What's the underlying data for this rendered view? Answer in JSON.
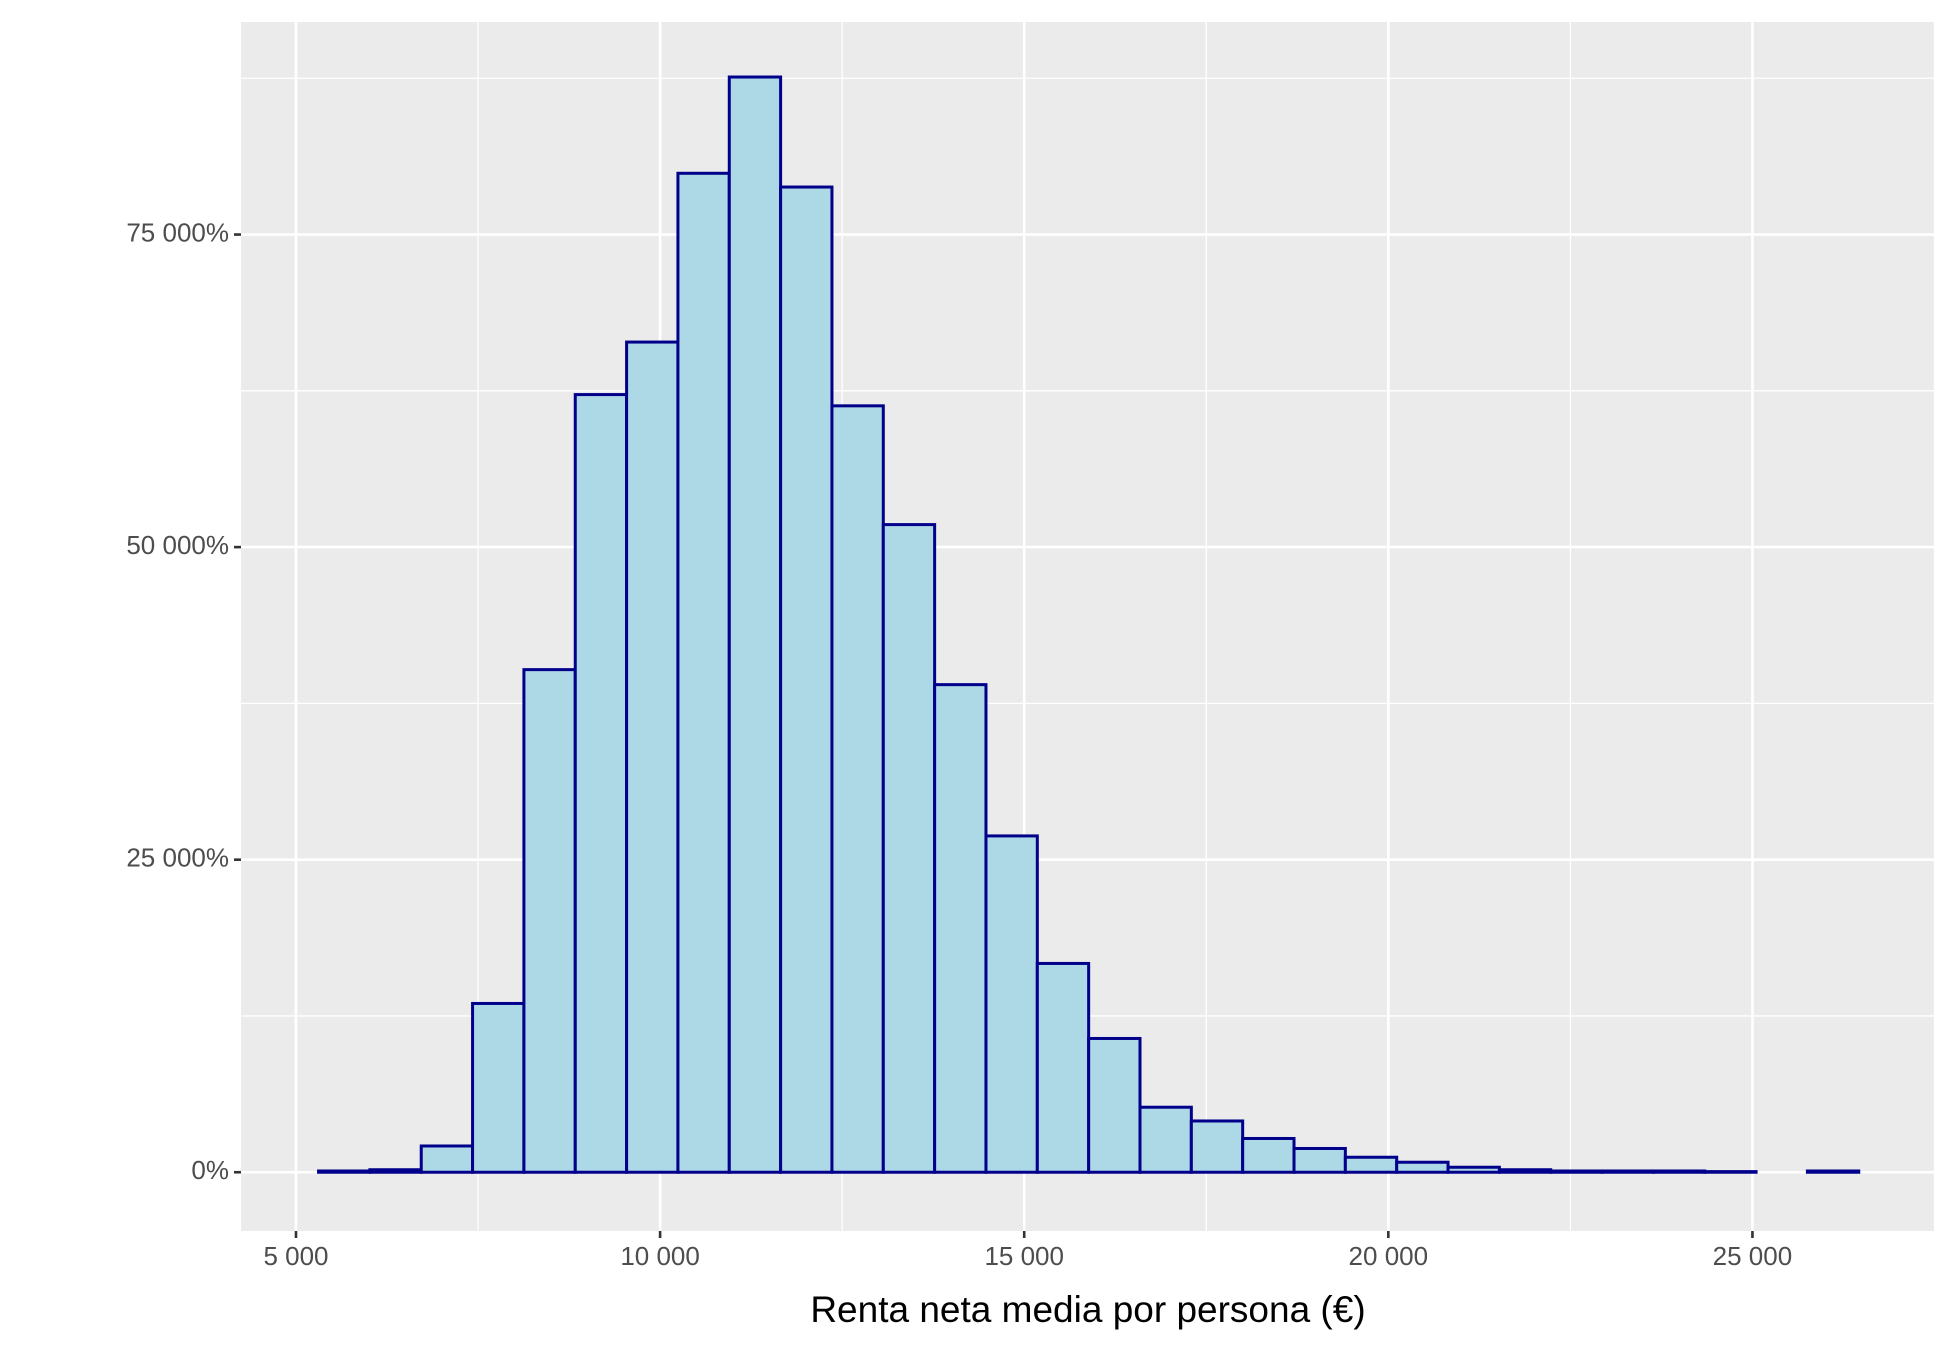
{
  "chart_data": {
    "type": "histogram",
    "x_label": "Renta neta media por persona (€)",
    "bins": [
      5310,
      6015,
      6720,
      7425,
      8130,
      8835,
      9540,
      10245,
      10950,
      11655,
      12360,
      13065,
      13770,
      14475,
      15180,
      15885,
      16590,
      17295,
      18000,
      18705,
      19410,
      20115,
      20820,
      21525,
      22230,
      22935,
      23640,
      24345,
      25050,
      25755,
      26460
    ],
    "values": [
      100,
      200,
      2100,
      13500,
      40200,
      62200,
      66400,
      79900,
      87600,
      78800,
      61300,
      51800,
      39000,
      26900,
      16700,
      10700,
      5200,
      4100,
      2700,
      1900,
      1200,
      800,
      400,
      200,
      100,
      100,
      100,
      50,
      0,
      100
    ],
    "color": "#add8e6",
    "edge_color": "#00008b",
    "xlim": [
      4245,
      27507
    ],
    "ylim": [
      -4700,
      92000
    ],
    "xticks": [
      {
        "value": 5000,
        "label": "5 000"
      },
      {
        "value": 10000,
        "label": "10 000"
      },
      {
        "value": 15000,
        "label": "15 000"
      },
      {
        "value": 20000,
        "label": "20 000"
      },
      {
        "value": 25000,
        "label": "25 000"
      }
    ],
    "yticks": [
      {
        "value": 0,
        "label": "0%"
      },
      {
        "value": 25000,
        "label": "25 000%"
      },
      {
        "value": 50000,
        "label": "50 000%"
      },
      {
        "value": 75000,
        "label": "75 000%"
      }
    ],
    "grid": true
  }
}
